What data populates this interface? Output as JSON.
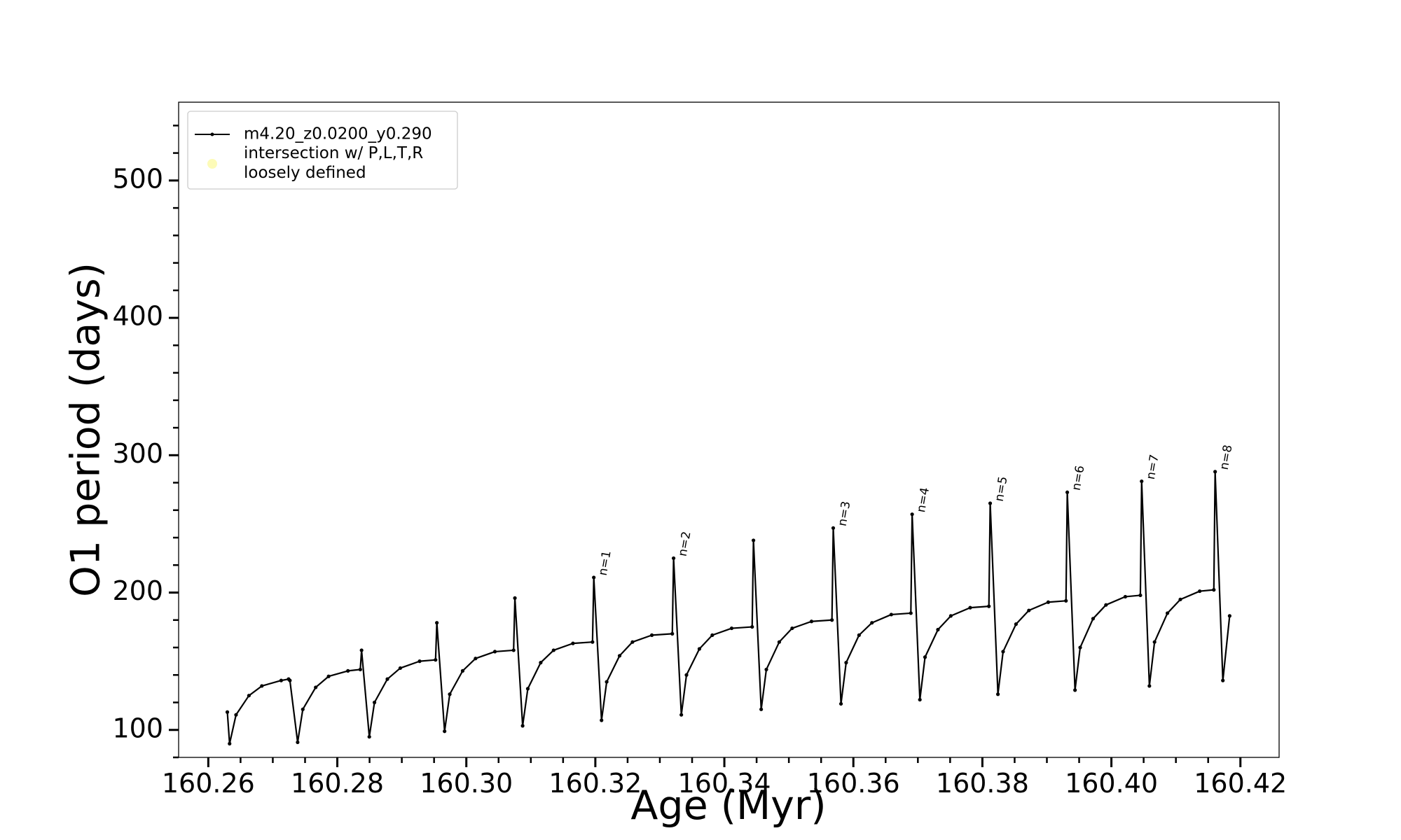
{
  "chart_data": {
    "type": "line",
    "xlabel": "Age (Myr)",
    "ylabel": "O1 period (days)",
    "xlim": [
      160.2554,
      160.426
    ],
    "ylim": [
      80,
      557
    ],
    "xticks": [
      160.26,
      160.28,
      {
        "value": 160.3,
        "label": "160.30"
      },
      160.32,
      160.34,
      160.36,
      160.38,
      {
        "value": 160.4,
        "label": "160.40"
      },
      160.42
    ],
    "xminorticks": [
      160.265,
      160.27,
      160.275,
      160.285,
      160.29,
      160.295,
      160.305,
      160.31,
      160.315,
      160.325,
      160.33,
      160.335,
      160.345,
      160.35,
      160.355,
      160.365,
      160.37,
      160.375,
      160.385,
      160.39,
      160.395,
      160.405,
      160.41,
      160.415
    ],
    "yticks": [
      100,
      200,
      300,
      400,
      500
    ],
    "yminorticks": [
      80,
      120,
      140,
      160,
      180,
      220,
      240,
      260,
      280,
      320,
      340,
      360,
      380,
      420,
      440,
      460,
      480,
      520,
      540
    ],
    "legend": "upper left",
    "series": [
      {
        "name": "m4.20_z0.0200_y0.290",
        "color": "#000000",
        "x": [
          160.26295,
          160.2633,
          160.2643,
          160.2663,
          160.2683,
          160.2713,
          160.27245,
          160.27265,
          160.27385,
          160.27465,
          160.27665,
          160.27865,
          160.28165,
          160.28356,
          160.28376,
          160.28496,
          160.28576,
          160.28776,
          160.28976,
          160.29276,
          160.29523,
          160.29543,
          160.29663,
          160.29743,
          160.29943,
          160.30143,
          160.30443,
          160.30733,
          160.30753,
          160.30873,
          160.30953,
          160.31153,
          160.31353,
          160.31653,
          160.31956,
          160.31976,
          160.32096,
          160.32176,
          160.32376,
          160.32576,
          160.32876,
          160.33193,
          160.33213,
          160.33333,
          160.33413,
          160.33613,
          160.33813,
          160.34113,
          160.34431,
          160.34451,
          160.34571,
          160.34651,
          160.34851,
          160.35051,
          160.35351,
          160.35668,
          160.35688,
          160.35808,
          160.35888,
          160.36088,
          160.36288,
          160.36588,
          160.36891,
          160.36911,
          160.37031,
          160.37111,
          160.37311,
          160.37511,
          160.37811,
          160.38101,
          160.38121,
          160.38241,
          160.38321,
          160.38521,
          160.38721,
          160.39021,
          160.39296,
          160.39316,
          160.39436,
          160.39516,
          160.39716,
          160.39916,
          160.40216,
          160.40449,
          160.40469,
          160.40589,
          160.40669,
          160.40869,
          160.41069,
          160.41369,
          160.41588,
          160.41608,
          160.41728,
          160.41833
        ],
        "values": [
          113,
          90,
          111,
          125,
          132,
          136,
          137,
          136,
          91,
          115,
          131,
          139,
          143,
          144,
          158,
          95,
          120,
          137,
          145,
          150,
          151,
          178,
          99,
          126,
          143,
          152,
          157,
          158,
          196,
          103,
          130,
          149,
          158,
          163,
          164,
          211,
          107,
          135,
          154,
          164,
          169,
          170,
          225,
          111,
          140,
          159,
          169,
          174,
          175,
          238,
          115,
          144,
          164,
          174,
          179,
          180,
          247,
          119,
          149,
          169,
          178,
          184,
          185,
          257,
          122,
          153,
          173,
          183,
          189,
          190,
          265,
          126,
          157,
          177,
          187,
          193,
          194,
          273,
          129,
          160,
          181,
          191,
          197,
          198,
          281,
          132,
          164,
          185,
          195,
          201,
          202,
          288,
          136,
          183
        ]
      },
      {
        "name": "intersection w/ P,L,T,R\nloosely defined",
        "color": "#fdfbb8",
        "x": [],
        "values": []
      }
    ],
    "annotations": [
      {
        "text": "n=1",
        "x": 160.31976,
        "y": 211
      },
      {
        "text": "n=2",
        "x": 160.33213,
        "y": 225
      },
      {
        "text": "n=3",
        "x": 160.35688,
        "y": 247
      },
      {
        "text": "n=4",
        "x": 160.36911,
        "y": 257
      },
      {
        "text": "n=5",
        "x": 160.38121,
        "y": 265
      },
      {
        "text": "n=6",
        "x": 160.39316,
        "y": 273
      },
      {
        "text": "n=7",
        "x": 160.40469,
        "y": 281
      },
      {
        "text": "n=8",
        "x": 160.41608,
        "y": 288
      }
    ]
  }
}
